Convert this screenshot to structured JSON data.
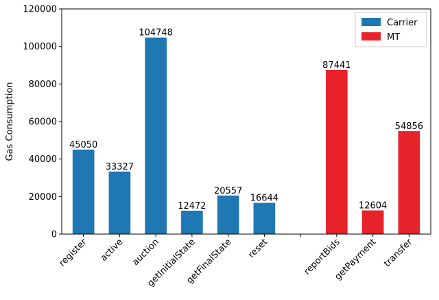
{
  "chart_data": {
    "type": "bar",
    "categories": [
      "register",
      "active",
      "auction",
      "getInitialState",
      "getFinalState",
      "reset",
      "",
      "reportBids",
      "getPayment",
      "transfer"
    ],
    "series": [
      {
        "name": "Carrier",
        "color": "#1f77b4",
        "values": [
          45050,
          33327,
          104748,
          12472,
          20557,
          16644,
          null,
          null,
          null,
          null
        ]
      },
      {
        "name": "MT",
        "color": "#e8222a",
        "values": [
          null,
          null,
          null,
          null,
          null,
          null,
          null,
          87441,
          12604,
          54856
        ]
      }
    ],
    "ylabel": "Gas Consumption",
    "ylim": [
      0,
      120000
    ],
    "yticks": [
      0,
      20000,
      40000,
      60000,
      80000,
      100000,
      120000
    ],
    "grid": false,
    "legend_position": "top-right"
  }
}
